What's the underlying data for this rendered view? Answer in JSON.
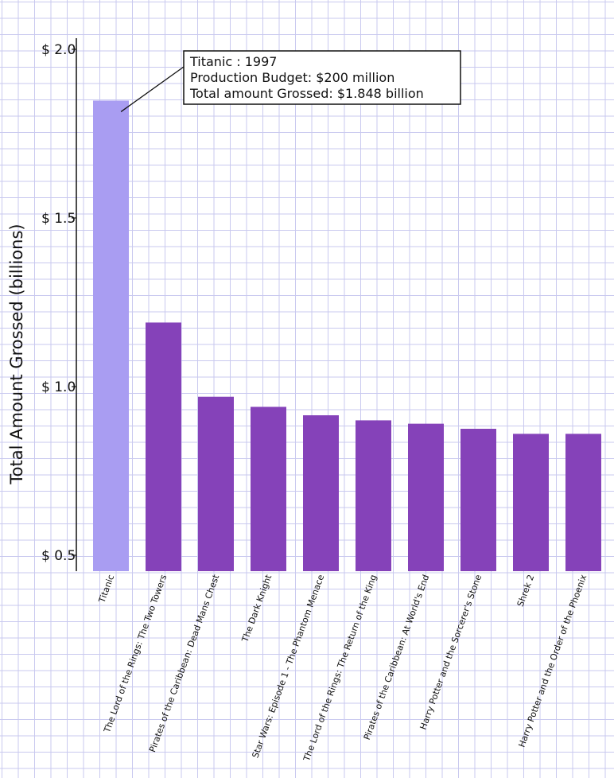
{
  "chart_data": {
    "type": "bar",
    "ylabel": "Total Amount Grossed (billions)",
    "xlabel": "",
    "ylim": [
      0.5,
      2.0
    ],
    "y_ticks": [
      {
        "value": 2.0,
        "label": "$ 2.0"
      },
      {
        "value": 1.5,
        "label": "$ 1.5"
      },
      {
        "value": 1.0,
        "label": "$ 1.0"
      },
      {
        "value": 0.5,
        "label": "$ 0.5"
      }
    ],
    "categories": [
      "Titanic",
      "The Lord of the Rings: The Two Towers",
      "Pirates of the Caribbean: Dead Mans Chest",
      "The Dark Knight",
      "Star Wars: Episode 1 - The Phantom Menace",
      "The Lord of the Rings: The Return of the King",
      "Pirates of the Caribbean: At World's End",
      "Harry Potter and the Sorcerer's Stone",
      "Shrek 2",
      "Harry Potter and the Order of the Phoenix"
    ],
    "values": [
      1.848,
      1.19,
      0.97,
      0.94,
      0.915,
      0.9,
      0.89,
      0.875,
      0.86,
      0.86
    ],
    "highlight_index": 0,
    "colors": {
      "highlight": "#a99df2",
      "bar": "#8542b9",
      "axis": "#111111"
    },
    "grid": true,
    "annotation": {
      "target": "Titanic",
      "lines": [
        "Titanic : 1997",
        "Production Budget: $200 million",
        "Total amount Grossed: $1.848 billion"
      ]
    }
  }
}
